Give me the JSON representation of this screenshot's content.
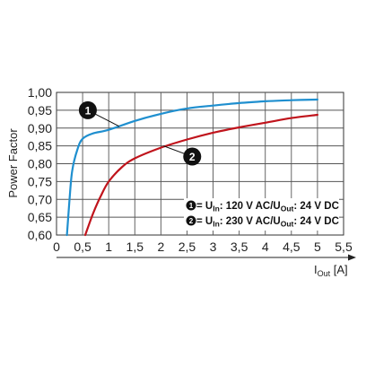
{
  "chart_data": {
    "type": "line",
    "title": "",
    "ylabel": "Power Factor",
    "xlabel": {
      "main": "I",
      "sub": "Out",
      "unit": " [A]"
    },
    "xlim": [
      0,
      5.5
    ],
    "ylim": [
      0.6,
      1.0
    ],
    "x_ticks": [
      0,
      0.5,
      1,
      1.5,
      2,
      2.5,
      3,
      3.5,
      4,
      4.5,
      5,
      5.5
    ],
    "x_tick_labels": [
      "0",
      "0,5",
      "1",
      "1,5",
      "2",
      "2,5",
      "3",
      "3,5",
      "4",
      "4,5",
      "5",
      "5,5"
    ],
    "y_ticks": [
      0.6,
      0.65,
      0.7,
      0.75,
      0.8,
      0.85,
      0.9,
      0.95,
      1.0
    ],
    "y_tick_labels": [
      "0,60",
      "0,65",
      "0,70",
      "0,75",
      "0,80",
      "0,85",
      "0,90",
      "0,95",
      "1,00"
    ],
    "grid": true,
    "series": [
      {
        "id": "1",
        "color": "#1f8fcf",
        "points": [
          [
            0.2,
            0.6
          ],
          [
            0.25,
            0.7
          ],
          [
            0.3,
            0.78
          ],
          [
            0.4,
            0.84
          ],
          [
            0.5,
            0.87
          ],
          [
            0.7,
            0.885
          ],
          [
            1.0,
            0.895
          ],
          [
            1.5,
            0.92
          ],
          [
            2.0,
            0.94
          ],
          [
            2.5,
            0.955
          ],
          [
            3.0,
            0.963
          ],
          [
            3.5,
            0.97
          ],
          [
            4.0,
            0.975
          ],
          [
            4.5,
            0.978
          ],
          [
            5.0,
            0.98
          ]
        ]
      },
      {
        "id": "2",
        "color": "#c0141c",
        "points": [
          [
            0.55,
            0.6
          ],
          [
            0.7,
            0.66
          ],
          [
            0.85,
            0.71
          ],
          [
            1.0,
            0.75
          ],
          [
            1.25,
            0.79
          ],
          [
            1.5,
            0.815
          ],
          [
            2.0,
            0.845
          ],
          [
            2.5,
            0.868
          ],
          [
            3.0,
            0.887
          ],
          [
            3.5,
            0.902
          ],
          [
            4.0,
            0.915
          ],
          [
            4.5,
            0.928
          ],
          [
            5.0,
            0.937
          ]
        ]
      }
    ],
    "markers": [
      {
        "label": "1",
        "x": 0.6,
        "y": 0.95,
        "target_x": 1.2,
        "target_y": 0.905
      },
      {
        "label": "2",
        "x": 2.6,
        "y": 0.82,
        "target_x": 2.05,
        "target_y": 0.85
      }
    ],
    "legend": {
      "placement": "bottom-right",
      "items": [
        {
          "num": "1",
          "prefix": " = U",
          "sub1": "In",
          "mid": ": 120 V AC/U",
          "sub2": "Out",
          "suffix": ": 24 V DC"
        },
        {
          "num": "2",
          "prefix": " = U",
          "sub1": "In",
          "mid": ": 230 V AC/U",
          "sub2": "Out",
          "suffix": ": 24 V DC"
        }
      ]
    }
  }
}
